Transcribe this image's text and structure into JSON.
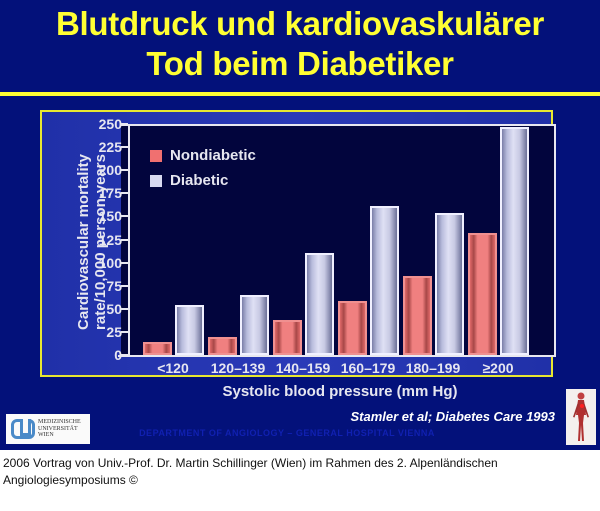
{
  "slide": {
    "title_line1": "Blutdruck und kardiovaskulärer",
    "title_line2": "Tod beim Diabetiker",
    "source": "Stamler et al; Diabetes Care 1993",
    "department": "DEPARTMENT OF ANGIOLOGY – GENERAL HOSPITAL VIENNA",
    "logo_left": {
      "line1": "MEDIZINISCHE",
      "line2": "UNIVERSITÄT",
      "line3": "WIEN",
      "icon": "university-logo-icon"
    },
    "logo_right": {
      "icon": "human-circulatory-system-icon"
    }
  },
  "caption": {
    "line1": "2006 Vortrag von Univ.-Prof. Dr. Martin Schillinger (Wien) im Rahmen des 2. Alpenländischen",
    "line2": "Angiologiesymposiums ©"
  },
  "colors": {
    "background": "#03117a",
    "title": "#ffff33",
    "nondiabetic": "#f08080",
    "diabetic": "#d8daf0",
    "plot_bg": "#02053d"
  },
  "chart_data": {
    "type": "bar",
    "title": "",
    "xlabel": "Systolic blood pressure (mm Hg)",
    "ylabel": "Cardiovascular mortality rate/10,000 person-years",
    "ylabel_line1": "Cardiovascular mortality",
    "ylabel_line2": "rate/10,000 person-years",
    "categories": [
      "<120",
      "120–139",
      "140–159",
      "160–179",
      "180–199",
      "≥200"
    ],
    "series": [
      {
        "name": "Nondiabetic",
        "values": [
          14,
          19,
          38,
          58,
          85,
          132
        ]
      },
      {
        "name": "Diabetic",
        "values": [
          54,
          65,
          110,
          161,
          154,
          247
        ]
      }
    ],
    "ylim": [
      0,
      250
    ],
    "yticks": [
      "0",
      "25",
      "50",
      "75",
      "100",
      "125",
      "150",
      "175",
      "200",
      "225",
      "250"
    ],
    "grid": false,
    "legend_position": "upper-left"
  }
}
